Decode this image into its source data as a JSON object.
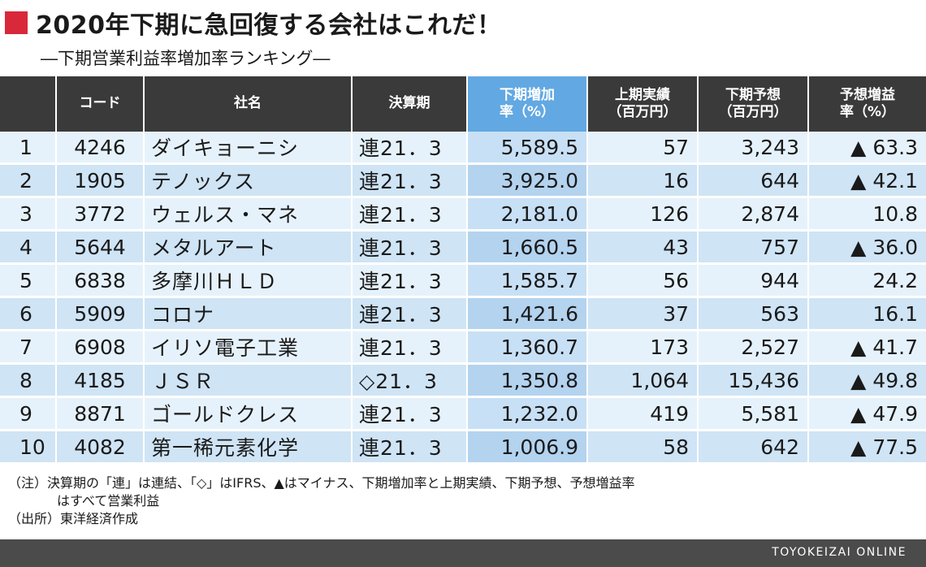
{
  "header": {
    "title": "2020年下期に急回復する会社はこれだ！",
    "subtitle": "―下期営業利益率増加率ランキング―"
  },
  "table": {
    "columns": [
      {
        "line1": "",
        "line2": ""
      },
      {
        "line1": "コード",
        "line2": ""
      },
      {
        "line1": "社名",
        "line2": ""
      },
      {
        "line1": "決算期",
        "line2": ""
      },
      {
        "line1": "下期増加",
        "line2": "率（%）"
      },
      {
        "line1": "上期実績",
        "line2": "（百万円）"
      },
      {
        "line1": "下期予想",
        "line2": "（百万円）"
      },
      {
        "line1": "予想増益",
        "line2": "率（%）"
      }
    ],
    "rows": [
      {
        "rank": "1",
        "code": "4246",
        "name": "ダイキョーニシ",
        "period": "連21．3",
        "increase": "5,589.5",
        "h1": "57",
        "h2": "3,243",
        "growth": "▲ 63.3"
      },
      {
        "rank": "2",
        "code": "1905",
        "name": "テノックス",
        "period": "連21．3",
        "increase": "3,925.0",
        "h1": "16",
        "h2": "644",
        "growth": "▲ 42.1"
      },
      {
        "rank": "3",
        "code": "3772",
        "name": "ウェルス・マネ",
        "period": "連21．3",
        "increase": "2,181.0",
        "h1": "126",
        "h2": "2,874",
        "growth": "10.8"
      },
      {
        "rank": "4",
        "code": "5644",
        "name": "メタルアート",
        "period": "連21．3",
        "increase": "1,660.5",
        "h1": "43",
        "h2": "757",
        "growth": "▲ 36.0"
      },
      {
        "rank": "5",
        "code": "6838",
        "name": "多摩川ＨＬＤ",
        "period": "連21．3",
        "increase": "1,585.7",
        "h1": "56",
        "h2": "944",
        "growth": "24.2"
      },
      {
        "rank": "6",
        "code": "5909",
        "name": "コロナ",
        "period": "連21．3",
        "increase": "1,421.6",
        "h1": "37",
        "h2": "563",
        "growth": "16.1"
      },
      {
        "rank": "7",
        "code": "6908",
        "name": "イリソ電子工業",
        "period": "連21．3",
        "increase": "1,360.7",
        "h1": "173",
        "h2": "2,527",
        "growth": "▲ 41.7"
      },
      {
        "rank": "8",
        "code": "4185",
        "name": "ＪＳＲ",
        "period": "◇21．3",
        "increase": "1,350.8",
        "h1": "1,064",
        "h2": "15,436",
        "growth": "▲ 49.8"
      },
      {
        "rank": "9",
        "code": "8871",
        "name": "ゴールドクレス",
        "period": "連21．3",
        "increase": "1,232.0",
        "h1": "419",
        "h2": "5,581",
        "growth": "▲ 47.9"
      },
      {
        "rank": "10",
        "code": "4082",
        "name": "第一稀元素化学",
        "period": "連21．3",
        "increase": "1,006.9",
        "h1": "58",
        "h2": "642",
        "growth": "▲ 77.5"
      }
    ]
  },
  "notes": {
    "note1": "（注）決算期の「連」は連結、「◇」はIFRS、▲はマイナス、下期増加率と上期実績、下期予想、予想増益率",
    "note1_cont": "はすべて営業利益",
    "source": "（出所）東洋経済作成"
  },
  "footer": {
    "brand": "TOYOKEIZAI ONLINE"
  },
  "colors": {
    "accent_red": "#d8283a",
    "header_dark": "#3a3a3a",
    "header_highlight": "#62a8e2"
  },
  "chart_data": {
    "type": "table",
    "title": "2020年下期に急回復する会社はこれだ！",
    "subtitle": "―下期営業利益率増加率ランキング―",
    "columns": [
      "",
      "コード",
      "社名",
      "決算期",
      "下期増加率（%）",
      "上期実績（百万円）",
      "下期予想（百万円）",
      "予想増益率（%）"
    ]
  }
}
